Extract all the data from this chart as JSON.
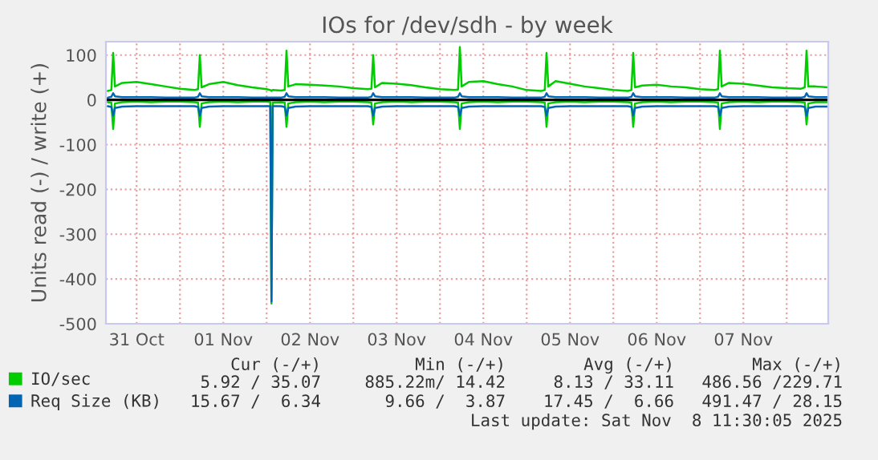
{
  "chart_data": {
    "type": "line",
    "title": "IOs for /dev/sdh - by week",
    "ylabel": "Units read (-) / write (+)",
    "x": [
      "2025-10-31T04:00",
      "2025-10-31T05:00",
      "2025-10-31T05:30",
      "2025-10-31T06:00",
      "2025-10-31T08:00",
      "2025-10-31T12:00",
      "2025-10-31T16:00",
      "2025-10-31T20:00",
      "2025-11-01T00:00",
      "2025-11-01T04:00",
      "2025-11-01T05:00",
      "2025-11-01T05:30",
      "2025-11-01T06:00",
      "2025-11-01T08:00",
      "2025-11-01T12:00",
      "2025-11-01T16:00",
      "2025-11-01T20:00",
      "2025-11-02T00:00",
      "2025-11-02T01:00",
      "2025-11-02T01:20",
      "2025-11-02T01:40",
      "2025-11-02T04:00",
      "2025-11-02T05:00",
      "2025-11-02T05:30",
      "2025-11-02T06:00",
      "2025-11-02T08:00",
      "2025-11-02T12:00",
      "2025-11-02T16:00",
      "2025-11-02T20:00",
      "2025-11-03T00:00",
      "2025-11-03T04:00",
      "2025-11-03T05:00",
      "2025-11-03T05:30",
      "2025-11-03T06:00",
      "2025-11-03T08:00",
      "2025-11-03T12:00",
      "2025-11-03T16:00",
      "2025-11-03T20:00",
      "2025-11-04T00:00",
      "2025-11-04T04:00",
      "2025-11-04T05:00",
      "2025-11-04T05:30",
      "2025-11-04T06:00",
      "2025-11-04T08:00",
      "2025-11-04T12:00",
      "2025-11-04T16:00",
      "2025-11-04T20:00",
      "2025-11-05T00:00",
      "2025-11-05T04:00",
      "2025-11-05T05:00",
      "2025-11-05T05:30",
      "2025-11-05T06:00",
      "2025-11-05T08:00",
      "2025-11-05T12:00",
      "2025-11-05T16:00",
      "2025-11-05T20:00",
      "2025-11-06T00:00",
      "2025-11-06T04:00",
      "2025-11-06T05:00",
      "2025-11-06T05:30",
      "2025-11-06T06:00",
      "2025-11-06T08:00",
      "2025-11-06T12:00",
      "2025-11-06T16:00",
      "2025-11-06T20:00",
      "2025-11-07T00:00",
      "2025-11-07T04:00",
      "2025-11-07T05:00",
      "2025-11-07T05:30",
      "2025-11-07T06:00",
      "2025-11-07T08:00",
      "2025-11-07T12:00",
      "2025-11-07T16:00",
      "2025-11-07T20:00",
      "2025-11-08T00:00",
      "2025-11-08T04:00",
      "2025-11-08T05:00",
      "2025-11-08T05:30",
      "2025-11-08T06:00",
      "2025-11-08T08:00",
      "2025-11-08T11:30"
    ],
    "series": [
      {
        "name": "IO/sec",
        "color": "#00cc00",
        "values": [
          20,
          22,
          105,
          30,
          38,
          40,
          35,
          30,
          25,
          22,
          24,
          100,
          28,
          35,
          40,
          33,
          28,
          24,
          22,
          20,
          22,
          21,
          22,
          110,
          30,
          35,
          34,
          32,
          30,
          26,
          24,
          25,
          100,
          28,
          38,
          36,
          33,
          28,
          24,
          22,
          23,
          118,
          30,
          40,
          42,
          35,
          30,
          22,
          20,
          22,
          105,
          30,
          42,
          36,
          30,
          26,
          22,
          20,
          22,
          105,
          28,
          32,
          34,
          30,
          28,
          24,
          22,
          24,
          110,
          30,
          38,
          36,
          32,
          28,
          26,
          25,
          28,
          110,
          30,
          30,
          28
        ]
      },
      {
        "color": "#00cc00",
        "values": [
          -5,
          -6,
          -65,
          -8,
          -5,
          -4,
          -5,
          -4,
          -4,
          -5,
          -6,
          -60,
          -8,
          -5,
          -4,
          -5,
          -4,
          -4,
          -5,
          -455,
          -6,
          -5,
          -6,
          -60,
          -8,
          -5,
          -4,
          -5,
          -4,
          -4,
          -5,
          -6,
          -55,
          -8,
          -5,
          -4,
          -5,
          -4,
          -4,
          -5,
          -6,
          -65,
          -8,
          -5,
          -4,
          -5,
          -4,
          -4,
          -5,
          -6,
          -60,
          -8,
          -5,
          -4,
          -5,
          -4,
          -4,
          -5,
          -6,
          -60,
          -8,
          -5,
          -4,
          -5,
          -4,
          -4,
          -5,
          -6,
          -65,
          -8,
          -5,
          -4,
          -5,
          -4,
          -4,
          -5,
          -6,
          -55,
          -8,
          -5,
          -5
        ]
      },
      {
        "name": "Req Size (KB)",
        "color": "#0066b3",
        "values": [
          5,
          7,
          15,
          8,
          6,
          6,
          6,
          5,
          5,
          5,
          7,
          15,
          8,
          6,
          6,
          6,
          5,
          5,
          5,
          5,
          5,
          5,
          7,
          15,
          8,
          6,
          6,
          6,
          5,
          5,
          5,
          7,
          15,
          8,
          6,
          6,
          6,
          5,
          5,
          5,
          7,
          15,
          8,
          6,
          6,
          6,
          5,
          5,
          5,
          7,
          15,
          8,
          6,
          6,
          6,
          5,
          5,
          5,
          7,
          15,
          8,
          6,
          6,
          6,
          5,
          5,
          5,
          7,
          15,
          8,
          6,
          6,
          6,
          5,
          5,
          5,
          7,
          15,
          8,
          6,
          6
        ]
      },
      {
        "color": "#0066b3",
        "values": [
          -14,
          -16,
          -35,
          -18,
          -15,
          -14,
          -14,
          -14,
          -14,
          -14,
          -16,
          -35,
          -18,
          -15,
          -14,
          -14,
          -14,
          -14,
          -14,
          -450,
          -14,
          -14,
          -16,
          -35,
          -18,
          -15,
          -14,
          -14,
          -14,
          -14,
          -14,
          -16,
          -35,
          -18,
          -15,
          -14,
          -14,
          -14,
          -14,
          -14,
          -16,
          -35,
          -18,
          -15,
          -14,
          -14,
          -14,
          -14,
          -14,
          -16,
          -35,
          -18,
          -15,
          -14,
          -14,
          -14,
          -14,
          -14,
          -16,
          -35,
          -18,
          -15,
          -14,
          -14,
          -14,
          -14,
          -14,
          -16,
          -35,
          -18,
          -15,
          -14,
          -14,
          -14,
          -14,
          -14,
          -16,
          -35,
          -18,
          -15,
          -15
        ]
      }
    ],
    "xlim": [
      "2025-10-31T03:30",
      "2025-11-08T11:30"
    ],
    "xticks": [
      {
        "value": "2025-10-31T12:00",
        "label": "31 Oct"
      },
      {
        "value": "2025-11-01T00:00",
        "label": null
      },
      {
        "value": "2025-11-01T12:00",
        "label": "01 Nov"
      },
      {
        "value": "2025-11-02T00:00",
        "label": null
      },
      {
        "value": "2025-11-02T12:00",
        "label": "02 Nov"
      },
      {
        "value": "2025-11-03T00:00",
        "label": null
      },
      {
        "value": "2025-11-03T12:00",
        "label": "03 Nov"
      },
      {
        "value": "2025-11-04T00:00",
        "label": null
      },
      {
        "value": "2025-11-04T12:00",
        "label": "04 Nov"
      },
      {
        "value": "2025-11-05T00:00",
        "label": null
      },
      {
        "value": "2025-11-05T12:00",
        "label": "05 Nov"
      },
      {
        "value": "2025-11-06T00:00",
        "label": null
      },
      {
        "value": "2025-11-06T12:00",
        "label": "06 Nov"
      },
      {
        "value": "2025-11-07T00:00",
        "label": null
      },
      {
        "value": "2025-11-07T12:00",
        "label": "07 Nov"
      },
      {
        "value": "2025-11-08T00:00",
        "label": null
      }
    ],
    "ylim": [
      -500,
      130
    ],
    "yticks": [
      -500,
      -400,
      -300,
      -200,
      -100,
      0,
      100
    ],
    "ref_lines": [
      {
        "axis": "y",
        "value": 0,
        "color": "#000000"
      }
    ],
    "grid": true,
    "legend": "bottom left",
    "annotations": [
      "Cur (-/+)",
      "Min (-/+)",
      "Avg (-/+)",
      "Max (-/+)",
      "5.92 / 35.07",
      "885.22m/ 14.42",
      "8.13 / 33.11",
      "486.56 /229.71",
      "15.67 /  6.34",
      "9.66 /  3.87",
      "17.45 /  6.66",
      "491.47 / 28.15",
      "Last update: Sat Nov  8 11:30:05 2025"
    ]
  }
}
